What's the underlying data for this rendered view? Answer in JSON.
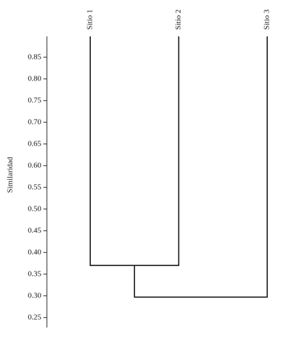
{
  "chart_data": {
    "type": "dendrogram",
    "y_label": "Similaridad",
    "leaves": [
      "Sitio 1",
      "Sitio 2",
      "Sitio 3"
    ],
    "merges": [
      {
        "children": [
          0,
          1
        ],
        "height": 0.37
      },
      {
        "children": [
          3,
          2
        ],
        "height": 0.297
      }
    ],
    "ylim": [
      0.227,
      0.898
    ],
    "yticks": [
      0.25,
      {
        "value": 0.3,
        "label": "0.30"
      },
      0.35,
      {
        "value": 0.4,
        "label": "0.40"
      },
      0.45,
      {
        "value": 0.5,
        "label": "0.50"
      },
      0.55,
      {
        "value": 0.6,
        "label": "0.60"
      },
      0.65,
      {
        "value": 0.7,
        "label": "0.70"
      },
      0.75,
      {
        "value": 0.8,
        "label": "0.80"
      },
      0.85
    ]
  }
}
